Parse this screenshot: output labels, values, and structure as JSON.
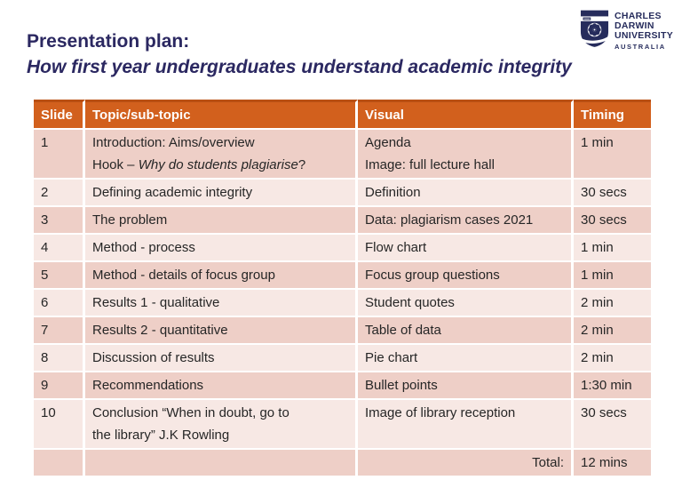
{
  "slide_title": {
    "line1": "Presentation plan:",
    "line2": "How first year undergraduates understand academic integrity"
  },
  "logo": {
    "name_line1": "CHARLES",
    "name_line2": "DARWIN",
    "name_line3": "UNIVERSITY",
    "country": "AUSTRALIA"
  },
  "colors": {
    "header_bg": "#d2601d",
    "header_top_border": "#b94f13",
    "band_dark": "#eecfc7",
    "band_light": "#f7e8e4",
    "title_text": "#2b2861",
    "logo_navy": "#262c5c",
    "cell_text": "#262626"
  },
  "table": {
    "headers": [
      "Slide",
      "Topic/sub-topic",
      "Visual",
      "Timing"
    ],
    "rows": [
      {
        "slide": "1",
        "topic": [
          [
            {
              "text": "Introduction: Aims/overview"
            }
          ],
          [
            {
              "text": "Hook – "
            },
            {
              "text": "Why do students plagiarise",
              "italic": true
            },
            {
              "text": "?"
            }
          ]
        ],
        "visual": [
          "Agenda",
          "Image: full lecture hall"
        ],
        "timing": "1 min"
      },
      {
        "slide": "2",
        "topic": [
          [
            {
              "text": "Defining academic integrity"
            }
          ]
        ],
        "visual": [
          "Definition"
        ],
        "timing": "30 secs"
      },
      {
        "slide": "3",
        "topic": [
          [
            {
              "text": "The problem"
            }
          ]
        ],
        "visual": [
          "Data: plagiarism cases 2021"
        ],
        "timing": "30 secs"
      },
      {
        "slide": "4",
        "topic": [
          [
            {
              "text": "Method - process"
            }
          ]
        ],
        "visual": [
          "Flow chart"
        ],
        "timing": "1 min"
      },
      {
        "slide": "5",
        "topic": [
          [
            {
              "text": "Method - details of focus group"
            }
          ]
        ],
        "visual": [
          "Focus group questions"
        ],
        "timing": "1 min"
      },
      {
        "slide": "6",
        "topic": [
          [
            {
              "text": "Results 1 - qualitative"
            }
          ]
        ],
        "visual": [
          "Student quotes"
        ],
        "timing": "2 min"
      },
      {
        "slide": "7",
        "topic": [
          [
            {
              "text": "Results 2 - quantitative"
            }
          ]
        ],
        "visual": [
          "Table of data"
        ],
        "timing": "2 min"
      },
      {
        "slide": "8",
        "topic": [
          [
            {
              "text": "Discussion of results"
            }
          ]
        ],
        "visual": [
          "Pie chart"
        ],
        "timing": "2 min"
      },
      {
        "slide": "9",
        "topic": [
          [
            {
              "text": "Recommendations"
            }
          ]
        ],
        "visual": [
          "Bullet points"
        ],
        "timing": "1:30 min"
      },
      {
        "slide": "10",
        "topic": [
          [
            {
              "text": "Conclusion “When in doubt, go to"
            }
          ],
          [
            {
              "text": "the library” J.K Rowling"
            }
          ]
        ],
        "visual": [
          "Image of library reception"
        ],
        "timing": "30 secs"
      }
    ],
    "total_label": "Total:",
    "total_value": "12 mins"
  }
}
